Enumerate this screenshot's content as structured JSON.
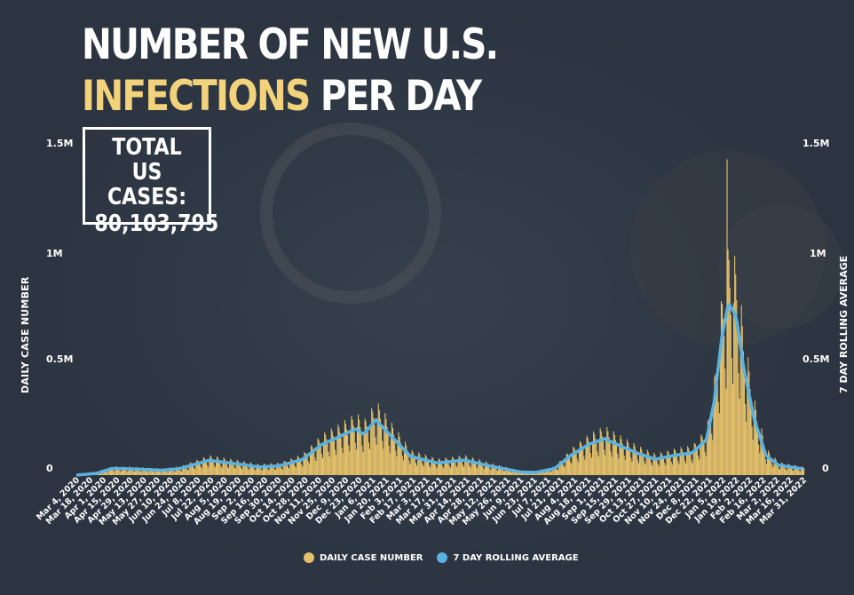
{
  "title": {
    "line1": "NUMBER OF NEW U.S.",
    "line2_accent": "INFECTIONS",
    "line2_rest": "PER DAY"
  },
  "total": {
    "line1": "TOTAL",
    "line2": "US CASES:",
    "value": "80,103,795"
  },
  "colors": {
    "bars": "#e4c06a",
    "line": "#5ab2e0",
    "background": "#2b3440",
    "accent": "#f2d27a"
  },
  "chart_data": {
    "type": "bar",
    "title": "NUMBER OF NEW U.S. INFECTIONS PER DAY",
    "ylabel": "DAILY CASE NUMBER",
    "y2label": "7 DAY ROLLING AVERAGE",
    "ylim": [
      0,
      1500000
    ],
    "yticks": [
      "0",
      "0.5M",
      "1M",
      "1.5M"
    ],
    "x_range": [
      "2020-03-04",
      "2022-03-31"
    ],
    "x_tick_labels": [
      "Mar 4, 2020",
      "Mar 18, 2020",
      "Apr 1, 2020",
      "Apr 15, 2020",
      "Apr 29, 2020",
      "May 13, 2020",
      "May 27, 2020",
      "Jun 10, 2020",
      "Jun 24, 2020",
      "Jul 8, 2020",
      "Jul 22, 2020",
      "Aug 5, 2020",
      "Aug 19, 2020",
      "Sep 2, 2020",
      "Sep 16, 2020",
      "Sep 30, 2020",
      "Oct 14, 2020",
      "Oct 28, 2020",
      "Nov 11, 2020",
      "Nov 25, 2020",
      "Dec 9, 2020",
      "Dec 23, 2020",
      "Jan 6, 2021",
      "Jan 20, 2021",
      "Feb 3, 2021",
      "Feb 17, 2021",
      "Mar 3, 2021",
      "Mar 17, 2021",
      "Mar 31, 2021",
      "Apr 14, 2021",
      "Apr 28, 2021",
      "May 12, 2021",
      "May 26, 2021",
      "Jun 9, 2021",
      "Jun 23, 2021",
      "Jul 7, 2021",
      "Jul 21, 2021",
      "Aug 4, 2021",
      "Aug 18, 2021",
      "Sep 1, 2021",
      "Sep 15, 2021",
      "Sep 29, 2021",
      "Oct 13, 2021",
      "Oct 27, 2021",
      "Nov 10, 2021",
      "Nov 24, 2021",
      "Dec 8, 2021",
      "Dec 22, 2021",
      "Jan 5, 2022",
      "Jan 19, 2022",
      "Feb 2, 2022",
      "Feb 16, 2022",
      "Mar 2, 2022",
      "Mar 16, 2022",
      "Mar 31, 2022"
    ],
    "rolling_average_points": [
      [
        "2020-03-04",
        0
      ],
      [
        "2020-03-25",
        8000
      ],
      [
        "2020-04-10",
        30000
      ],
      [
        "2020-05-01",
        28000
      ],
      [
        "2020-06-01",
        22000
      ],
      [
        "2020-06-20",
        30000
      ],
      [
        "2020-07-20",
        67000
      ],
      [
        "2020-08-20",
        50000
      ],
      [
        "2020-09-10",
        37000
      ],
      [
        "2020-10-01",
        42000
      ],
      [
        "2020-10-25",
        70000
      ],
      [
        "2020-11-15",
        140000
      ],
      [
        "2020-12-01",
        170000
      ],
      [
        "2020-12-20",
        210000
      ],
      [
        "2020-12-28",
        185000
      ],
      [
        "2021-01-10",
        250000
      ],
      [
        "2021-01-25",
        180000
      ],
      [
        "2021-02-15",
        85000
      ],
      [
        "2021-03-15",
        55000
      ],
      [
        "2021-04-12",
        68000
      ],
      [
        "2021-05-10",
        40000
      ],
      [
        "2021-06-10",
        14000
      ],
      [
        "2021-06-25",
        12000
      ],
      [
        "2021-07-15",
        30000
      ],
      [
        "2021-08-01",
        90000
      ],
      [
        "2021-08-20",
        140000
      ],
      [
        "2021-09-05",
        165000
      ],
      [
        "2021-09-20",
        135000
      ],
      [
        "2021-10-10",
        98000
      ],
      [
        "2021-10-28",
        72000
      ],
      [
        "2021-11-20",
        92000
      ],
      [
        "2021-12-05",
        100000
      ],
      [
        "2021-12-20",
        160000
      ],
      [
        "2021-12-28",
        330000
      ],
      [
        "2022-01-05",
        620000
      ],
      [
        "2022-01-12",
        780000
      ],
      [
        "2022-01-20",
        720000
      ],
      [
        "2022-01-28",
        480000
      ],
      [
        "2022-02-08",
        250000
      ],
      [
        "2022-02-20",
        90000
      ],
      [
        "2022-03-05",
        45000
      ],
      [
        "2022-03-31",
        28000
      ]
    ],
    "daily_peak": {
      "date": "2022-01-10",
      "value": 1430000
    },
    "legend": [
      "DAILY CASE NUMBER",
      "7 DAY ROLLING AVERAGE"
    ],
    "legend_placement": "bottom-center",
    "grid": false
  }
}
